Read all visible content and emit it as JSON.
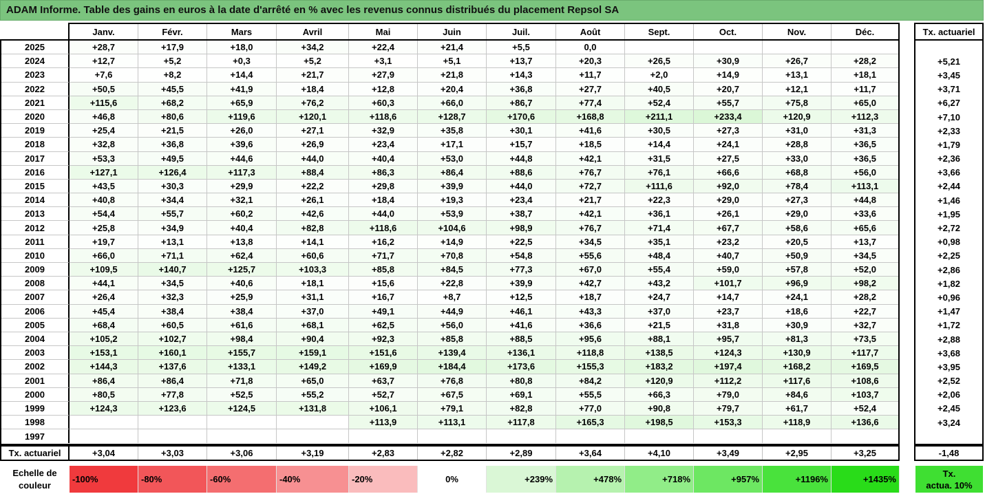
{
  "colors": {
    "title_bar": "#7bc47e"
  },
  "chart_data": {
    "type": "table",
    "title": "ADAM Informe. Table des gains en euros à la date d'arrêté en % avec les revenus connus distribués du placement Repsol SA",
    "columns": [
      "Janv.",
      "Févr.",
      "Mars",
      "Avril",
      "Mai",
      "Juin",
      "Juil.",
      "Août",
      "Sept.",
      "Oct.",
      "Nov.",
      "Déc."
    ],
    "rate_header": "Tx. actuariel",
    "rows": [
      {
        "year": "2025",
        "values": [
          "+28,7",
          "+17,9",
          "+18,0",
          "+34,2",
          "+22,4",
          "+21,4",
          "+5,5",
          "0,0",
          "",
          "",
          "",
          ""
        ],
        "rate": ""
      },
      {
        "year": "2024",
        "values": [
          "+12,7",
          "+5,2",
          "+0,3",
          "+5,2",
          "+3,1",
          "+5,1",
          "+13,7",
          "+20,3",
          "+26,5",
          "+30,9",
          "+26,7",
          "+28,2"
        ],
        "rate": "+5,21"
      },
      {
        "year": "2023",
        "values": [
          "+7,6",
          "+8,2",
          "+14,4",
          "+21,7",
          "+27,9",
          "+21,8",
          "+14,3",
          "+11,7",
          "+2,0",
          "+14,9",
          "+13,1",
          "+18,1"
        ],
        "rate": "+3,45"
      },
      {
        "year": "2022",
        "values": [
          "+50,5",
          "+45,5",
          "+41,9",
          "+18,4",
          "+12,8",
          "+20,4",
          "+36,8",
          "+27,7",
          "+40,5",
          "+20,7",
          "+12,1",
          "+11,7"
        ],
        "rate": "+3,71"
      },
      {
        "year": "2021",
        "values": [
          "+115,6",
          "+68,2",
          "+65,9",
          "+76,2",
          "+60,3",
          "+66,0",
          "+86,7",
          "+77,4",
          "+52,4",
          "+55,7",
          "+75,8",
          "+65,0"
        ],
        "rate": "+6,27"
      },
      {
        "year": "2020",
        "values": [
          "+46,8",
          "+80,6",
          "+119,6",
          "+120,1",
          "+118,6",
          "+128,7",
          "+170,6",
          "+168,8",
          "+211,1",
          "+233,4",
          "+120,9",
          "+112,3"
        ],
        "rate": "+7,10"
      },
      {
        "year": "2019",
        "values": [
          "+25,4",
          "+21,5",
          "+26,0",
          "+27,1",
          "+32,9",
          "+35,8",
          "+30,1",
          "+41,6",
          "+30,5",
          "+27,3",
          "+31,0",
          "+31,3"
        ],
        "rate": "+2,33"
      },
      {
        "year": "2018",
        "values": [
          "+32,8",
          "+36,8",
          "+39,6",
          "+26,9",
          "+23,4",
          "+17,1",
          "+15,7",
          "+18,5",
          "+14,4",
          "+24,1",
          "+28,8",
          "+36,5"
        ],
        "rate": "+1,79"
      },
      {
        "year": "2017",
        "values": [
          "+53,3",
          "+49,5",
          "+44,6",
          "+44,0",
          "+40,4",
          "+53,0",
          "+44,8",
          "+42,1",
          "+31,5",
          "+27,5",
          "+33,0",
          "+36,5"
        ],
        "rate": "+2,36"
      },
      {
        "year": "2016",
        "values": [
          "+127,1",
          "+126,4",
          "+117,3",
          "+88,4",
          "+86,3",
          "+86,4",
          "+88,6",
          "+76,7",
          "+76,1",
          "+66,6",
          "+68,8",
          "+56,0"
        ],
        "rate": "+3,66"
      },
      {
        "year": "2015",
        "values": [
          "+43,5",
          "+30,3",
          "+29,9",
          "+22,2",
          "+29,8",
          "+39,9",
          "+44,0",
          "+72,7",
          "+111,6",
          "+92,0",
          "+78,4",
          "+113,1"
        ],
        "rate": "+2,44"
      },
      {
        "year": "2014",
        "values": [
          "+40,8",
          "+34,4",
          "+32,1",
          "+26,1",
          "+18,4",
          "+19,3",
          "+23,4",
          "+21,7",
          "+22,3",
          "+29,0",
          "+27,3",
          "+44,8"
        ],
        "rate": "+1,46"
      },
      {
        "year": "2013",
        "values": [
          "+54,4",
          "+55,7",
          "+60,2",
          "+42,6",
          "+44,0",
          "+53,9",
          "+38,7",
          "+42,1",
          "+36,1",
          "+26,1",
          "+29,0",
          "+33,6"
        ],
        "rate": "+1,95"
      },
      {
        "year": "2012",
        "values": [
          "+25,8",
          "+34,9",
          "+40,4",
          "+82,8",
          "+118,6",
          "+104,6",
          "+98,9",
          "+76,7",
          "+71,4",
          "+67,7",
          "+58,6",
          "+65,6"
        ],
        "rate": "+2,72"
      },
      {
        "year": "2011",
        "values": [
          "+19,7",
          "+13,1",
          "+13,8",
          "+14,1",
          "+16,2",
          "+14,9",
          "+22,5",
          "+34,5",
          "+35,1",
          "+23,2",
          "+20,5",
          "+13,7"
        ],
        "rate": "+0,98"
      },
      {
        "year": "2010",
        "values": [
          "+66,0",
          "+71,1",
          "+62,4",
          "+60,6",
          "+71,7",
          "+70,8",
          "+54,8",
          "+55,6",
          "+48,4",
          "+40,7",
          "+50,9",
          "+34,5"
        ],
        "rate": "+2,25"
      },
      {
        "year": "2009",
        "values": [
          "+109,5",
          "+140,7",
          "+125,7",
          "+103,3",
          "+85,8",
          "+84,5",
          "+77,3",
          "+67,0",
          "+55,4",
          "+59,0",
          "+57,8",
          "+52,0"
        ],
        "rate": "+2,86"
      },
      {
        "year": "2008",
        "values": [
          "+44,1",
          "+34,5",
          "+40,6",
          "+18,1",
          "+15,6",
          "+22,8",
          "+39,9",
          "+42,7",
          "+43,2",
          "+101,7",
          "+96,9",
          "+98,2"
        ],
        "rate": "+1,82"
      },
      {
        "year": "2007",
        "values": [
          "+26,4",
          "+32,3",
          "+25,9",
          "+31,1",
          "+16,7",
          "+8,7",
          "+12,5",
          "+18,7",
          "+24,7",
          "+14,7",
          "+24,1",
          "+28,2"
        ],
        "rate": "+0,96"
      },
      {
        "year": "2006",
        "values": [
          "+45,4",
          "+38,4",
          "+38,4",
          "+37,0",
          "+49,1",
          "+44,9",
          "+46,1",
          "+43,3",
          "+37,0",
          "+23,7",
          "+18,6",
          "+22,7"
        ],
        "rate": "+1,47"
      },
      {
        "year": "2005",
        "values": [
          "+68,4",
          "+60,5",
          "+61,6",
          "+68,1",
          "+62,5",
          "+56,0",
          "+41,6",
          "+36,6",
          "+21,5",
          "+31,8",
          "+30,9",
          "+32,7"
        ],
        "rate": "+1,72"
      },
      {
        "year": "2004",
        "values": [
          "+105,2",
          "+102,7",
          "+98,4",
          "+90,4",
          "+92,3",
          "+85,8",
          "+88,5",
          "+95,6",
          "+88,1",
          "+95,7",
          "+81,3",
          "+73,5"
        ],
        "rate": "+2,88"
      },
      {
        "year": "2003",
        "values": [
          "+153,1",
          "+160,1",
          "+155,7",
          "+159,1",
          "+151,6",
          "+139,4",
          "+136,1",
          "+118,8",
          "+138,5",
          "+124,3",
          "+130,9",
          "+117,7"
        ],
        "rate": "+3,68"
      },
      {
        "year": "2002",
        "values": [
          "+144,3",
          "+137,6",
          "+133,1",
          "+149,2",
          "+169,9",
          "+184,4",
          "+173,6",
          "+155,3",
          "+183,2",
          "+197,4",
          "+168,2",
          "+169,5"
        ],
        "rate": "+3,95"
      },
      {
        "year": "2001",
        "values": [
          "+86,4",
          "+86,4",
          "+71,8",
          "+65,0",
          "+63,7",
          "+76,8",
          "+80,8",
          "+84,2",
          "+120,9",
          "+112,2",
          "+117,6",
          "+108,6"
        ],
        "rate": "+2,52"
      },
      {
        "year": "2000",
        "values": [
          "+80,5",
          "+77,8",
          "+52,5",
          "+55,2",
          "+52,7",
          "+67,5",
          "+69,1",
          "+55,5",
          "+66,3",
          "+79,0",
          "+84,6",
          "+103,7"
        ],
        "rate": "+2,06"
      },
      {
        "year": "1999",
        "values": [
          "+124,3",
          "+123,6",
          "+124,5",
          "+131,8",
          "+106,1",
          "+79,1",
          "+82,8",
          "+77,0",
          "+90,8",
          "+79,7",
          "+61,7",
          "+52,4"
        ],
        "rate": "+2,45"
      },
      {
        "year": "1998",
        "values": [
          "",
          "",
          "",
          "",
          "+113,9",
          "+113,1",
          "+117,8",
          "+165,3",
          "+198,5",
          "+153,3",
          "+118,9",
          "+136,6"
        ],
        "rate": "+3,24"
      },
      {
        "year": "1997",
        "values": [
          "",
          "",
          "",
          "",
          "",
          "",
          "",
          "",
          "",
          "",
          "",
          ""
        ],
        "rate": ""
      }
    ],
    "summary": {
      "label": "Tx. actuariel",
      "values": [
        "+3,04",
        "+3,03",
        "+3,06",
        "+3,19",
        "+2,83",
        "+2,82",
        "+2,89",
        "+3,64",
        "+4,10",
        "+3,49",
        "+2,95",
        "+3,25"
      ],
      "rate": "-1,48"
    },
    "scale": {
      "label": "Echelle de couleur",
      "steps": [
        {
          "label": "-100%",
          "color": "#f03a3d"
        },
        {
          "label": "-80%",
          "color": "#f25659"
        },
        {
          "label": "-60%",
          "color": "#f46e70"
        },
        {
          "label": "-40%",
          "color": "#f79092"
        },
        {
          "label": "-20%",
          "color": "#fabcbd"
        },
        {
          "label": "0%",
          "color": "#ffffff"
        },
        {
          "label": "+239%",
          "color": "#daf7d6"
        },
        {
          "label": "+478%",
          "color": "#b6f2af"
        },
        {
          "label": "+718%",
          "color": "#91ed88"
        },
        {
          "label": "+957%",
          "color": "#6de762"
        },
        {
          "label": "+1196%",
          "color": "#49e23c"
        },
        {
          "label": "+1435%",
          "color": "#29dc19"
        }
      ],
      "rate_step": {
        "label_lines": [
          "Tx.",
          "actua. 10%"
        ],
        "color": "#3fdf32"
      }
    }
  }
}
